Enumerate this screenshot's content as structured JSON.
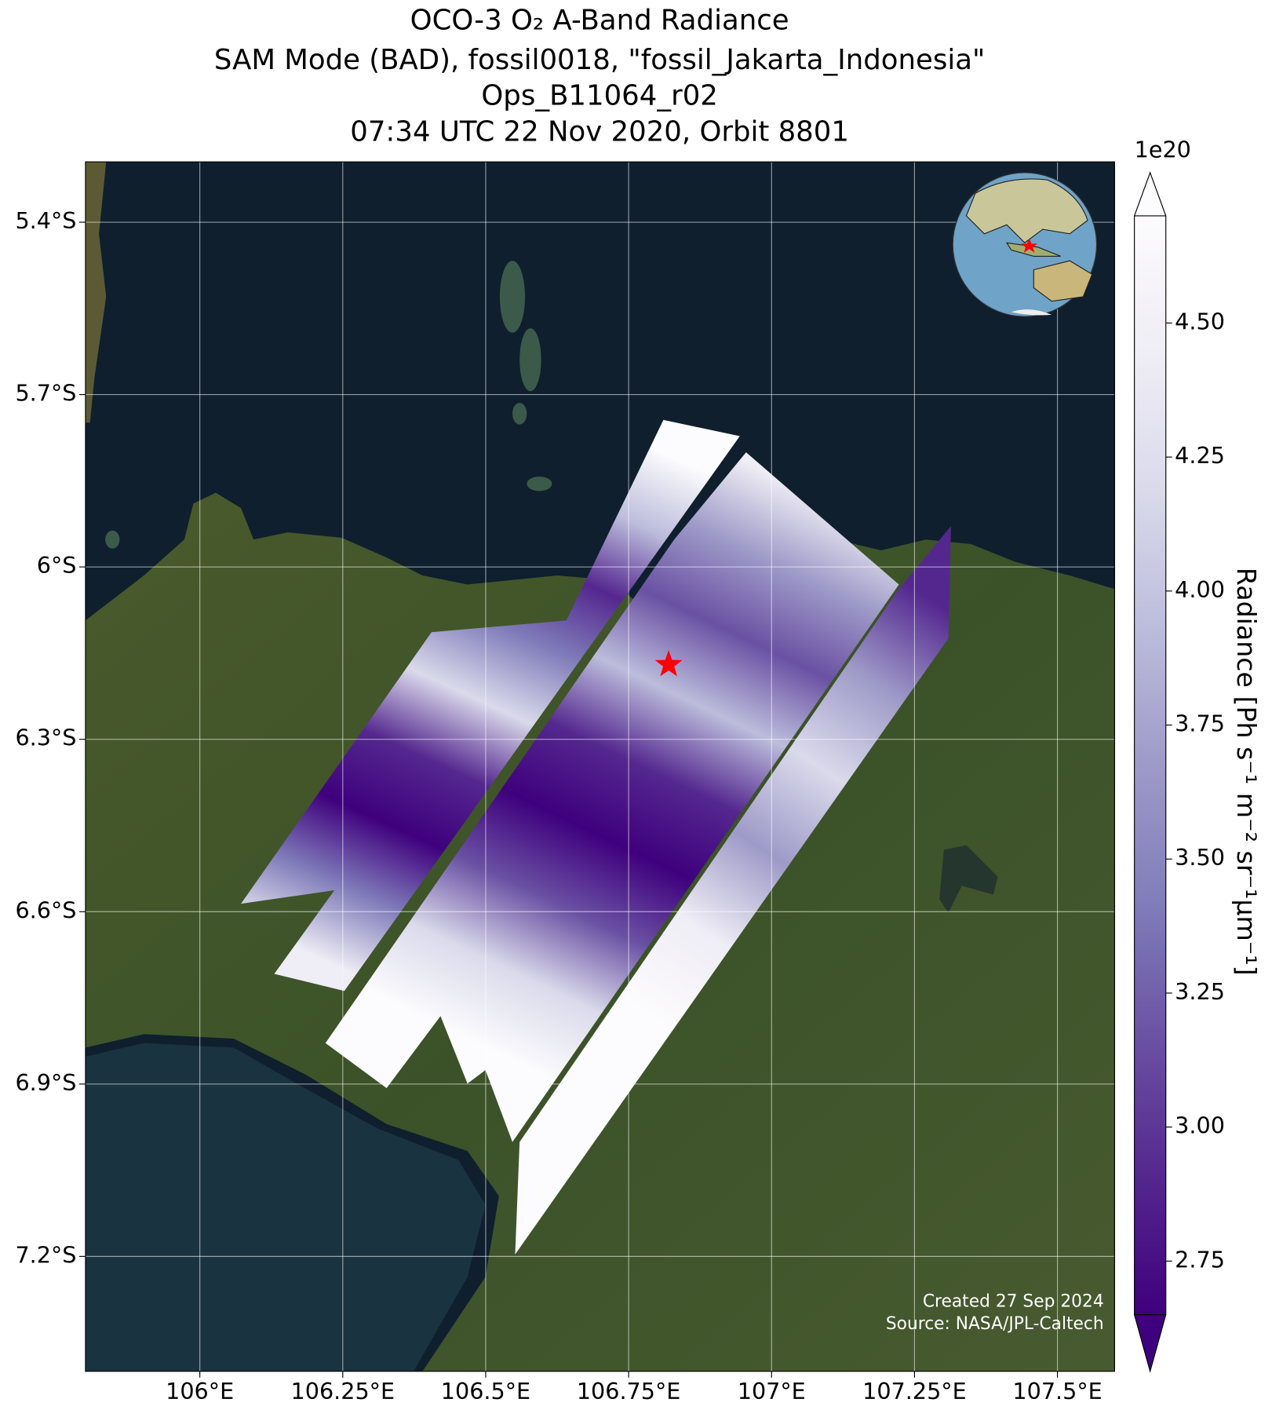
{
  "chart_data": {
    "type": "map",
    "title": [
      "OCO-3 O₂ A-Band Radiance",
      "SAM Mode (BAD), fossil0018, \"fossil_Jakarta_Indonesia\"",
      "Ops_B11064_r02",
      "07:34 UTC 22 Nov 2020, Orbit 8801"
    ],
    "xlim": [
      105.8,
      107.6
    ],
    "ylim": [
      -7.4,
      -5.295
    ],
    "xticks": [
      {
        "value": 106,
        "label": "106°E"
      },
      {
        "value": 106.25,
        "label": "106.25°E"
      },
      {
        "value": 106.5,
        "label": "106.5°E"
      },
      {
        "value": 106.75,
        "label": "106.75°E"
      },
      {
        "value": 107,
        "label": "107°E"
      },
      {
        "value": 107.25,
        "label": "107.25°E"
      },
      {
        "value": 107.5,
        "label": "107.5°E"
      }
    ],
    "yticks": [
      {
        "value": -5.4,
        "label": "5.4°S"
      },
      {
        "value": -5.7,
        "label": "5.7°S"
      },
      {
        "value": -6,
        "label": "6°S"
      },
      {
        "value": -6.3,
        "label": "6.3°S"
      },
      {
        "value": -6.6,
        "label": "6.6°S"
      },
      {
        "value": -6.9,
        "label": "6.9°S"
      },
      {
        "value": -7.2,
        "label": "7.2°S"
      }
    ],
    "grid": true,
    "colorbar": {
      "label": "Radiance [Ph s⁻¹ m⁻² sr⁻¹μm⁻¹]",
      "offset_label": "1e20",
      "lim": [
        2.65,
        4.7
      ],
      "ticks": [
        {
          "value": 2.75,
          "label": "2.75"
        },
        {
          "value": 3,
          "label": "3.00"
        },
        {
          "value": 3.25,
          "label": "3.25"
        },
        {
          "value": 3.5,
          "label": "3.50"
        },
        {
          "value": 3.75,
          "label": "3.75"
        },
        {
          "value": 4,
          "label": "4.00"
        },
        {
          "value": 4.25,
          "label": "4.25"
        },
        {
          "value": 4.5,
          "label": "4.50"
        }
      ],
      "colormap": [
        "#3f007d",
        "#54278f",
        "#6a51a3",
        "#807dba",
        "#9e9ac8",
        "#bcbddc",
        "#dadaeb",
        "#efedf5",
        "#fcfbfd"
      ]
    },
    "target": {
      "lon": 106.82,
      "lat": -6.17,
      "color": "#ff0000"
    },
    "footer": [
      "Created 27 Sep 2024",
      "Source: NASA/JPL-Caltech"
    ]
  }
}
